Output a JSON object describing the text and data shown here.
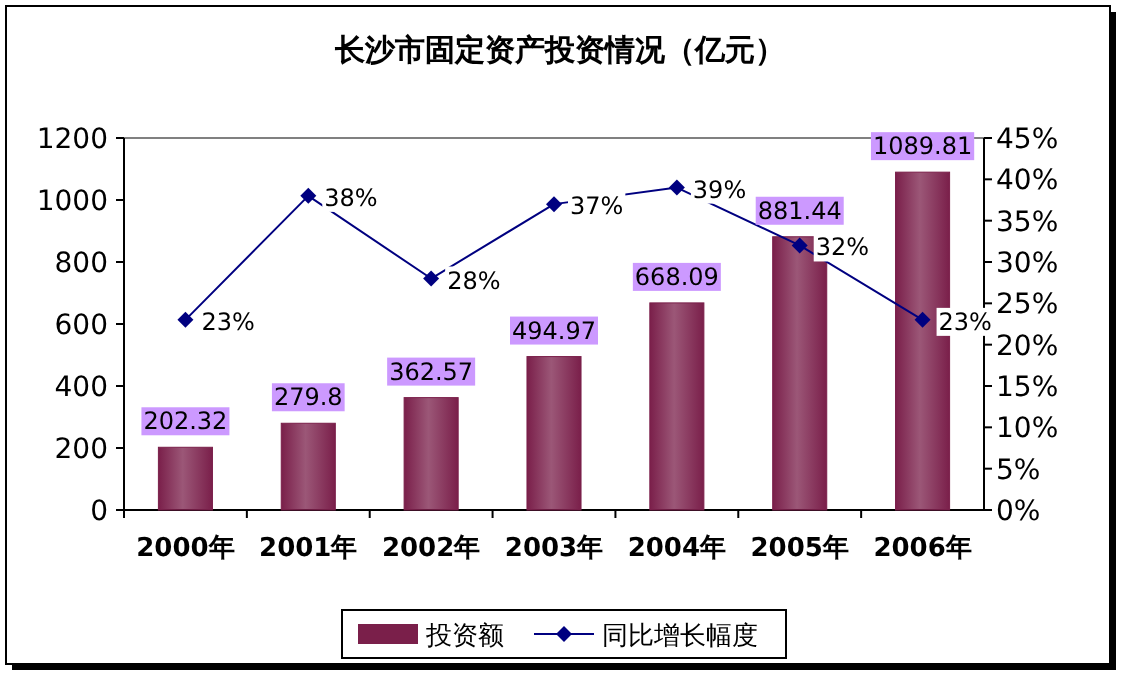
{
  "chart_data": {
    "type": "bar",
    "title": "长沙市固定资产投资情况（亿元）",
    "categories": [
      "2000年",
      "2001年",
      "2002年",
      "2003年",
      "2004年",
      "2005年",
      "2006年"
    ],
    "series": [
      {
        "name": "投资额",
        "color": "#7a1f4a",
        "values": [
          202.32,
          279.8,
          362.57,
          494.97,
          668.09,
          881.44,
          1089.81
        ],
        "value_labels": [
          "202.32",
          "279.8",
          "362.57",
          "494.97",
          "668.09",
          "881.44",
          "1089.81"
        ]
      },
      {
        "name": "同比增长幅度",
        "type": "line",
        "axis": "y2",
        "color": "#000080",
        "marker": "diamond",
        "values": [
          23,
          38,
          28,
          37,
          39,
          32,
          23
        ],
        "value_labels": [
          "23%",
          "38%",
          "28%",
          "37%",
          "39%",
          "32%",
          "23%"
        ]
      }
    ],
    "ylim": [
      0,
      1200
    ],
    "yticks": [
      0,
      200,
      400,
      600,
      800,
      1000,
      1200
    ],
    "y2lim": [
      0,
      45
    ],
    "y2ticks": [
      {
        "value": 0,
        "label": "0%"
      },
      {
        "value": 5,
        "label": "5%"
      },
      {
        "value": 10,
        "label": "10%"
      },
      {
        "value": 15,
        "label": "15%"
      },
      {
        "value": 20,
        "label": "20%"
      },
      {
        "value": 25,
        "label": "25%"
      },
      {
        "value": 30,
        "label": "30%"
      },
      {
        "value": 35,
        "label": "35%"
      },
      {
        "value": 40,
        "label": "40%"
      },
      {
        "value": 45,
        "label": "45%"
      }
    ],
    "legend": "bottom"
  }
}
